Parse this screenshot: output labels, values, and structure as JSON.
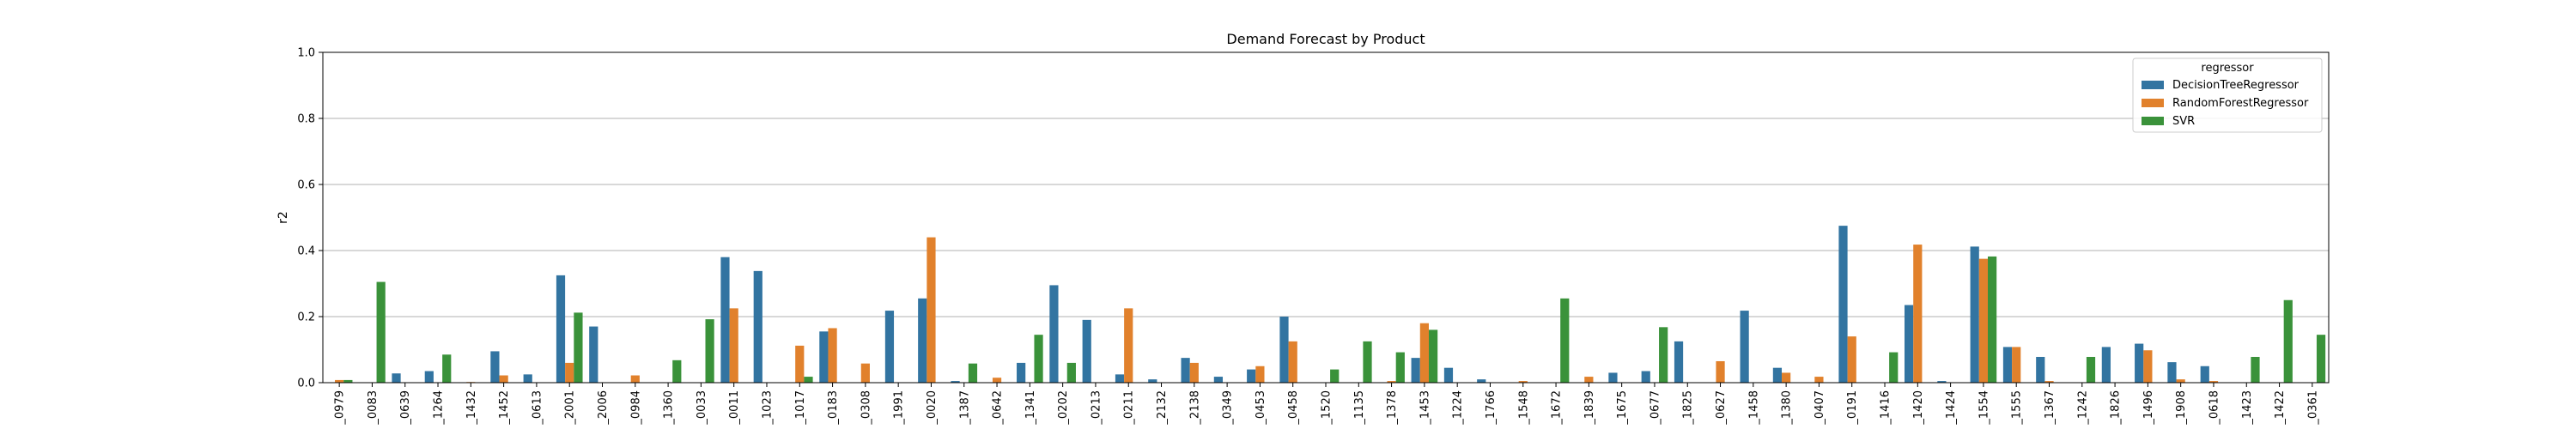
{
  "chart_data": {
    "type": "bar",
    "title": "Demand Forecast by Product",
    "xlabel": "",
    "ylabel": "r2",
    "ylim": [
      0,
      1.0
    ],
    "yticks": [
      "0.0",
      "0.2",
      "0.4",
      "0.6",
      "0.8",
      "1.0"
    ],
    "grid": "horizontal",
    "legend": {
      "title": "regressor",
      "placement": "top-right"
    },
    "categories": [
      "_0979",
      "_0083",
      "_0639",
      "_1264",
      "_1432",
      "_1452",
      "_0613",
      "_2001",
      "_2006",
      "_0984",
      "_1360",
      "_0033",
      "_0011",
      "_1023",
      "_1017",
      "_0183",
      "_0308",
      "_1991",
      "_0020",
      "_1387",
      "_0642",
      "_1341",
      "_0202",
      "_0213",
      "_0211",
      "_2132",
      "_2138",
      "_0349",
      "_0453",
      "_0458",
      "_1520",
      "_1135",
      "_1378",
      "_1453",
      "_1224",
      "_1766",
      "_1548",
      "_1672",
      "_1839",
      "_1675",
      "_0677",
      "_1825",
      "_0627",
      "_1458",
      "_1380",
      "_0407",
      "_0191",
      "_1416",
      "_1420",
      "_1424",
      "_1554",
      "_1555",
      "_1367",
      "_1242",
      "_1826",
      "_1496",
      "_1908",
      "_0618",
      "_1423",
      "_1422",
      "_0361"
    ],
    "series": [
      {
        "name": "DecisionTreeRegressor",
        "color": "#3274a1",
        "values": [
          0,
          0,
          0.028,
          0.035,
          0,
          0.095,
          0.025,
          0.325,
          0.17,
          0,
          0,
          0,
          0.38,
          0.338,
          0,
          0.155,
          0,
          0.218,
          0.255,
          0.005,
          0,
          0.06,
          0.295,
          0.19,
          0.025,
          0.01,
          0.075,
          0.018,
          0.04,
          0.2,
          0,
          0,
          0,
          0.075,
          0.045,
          0.01,
          0,
          0,
          0,
          0.03,
          0.035,
          0.125,
          0,
          0.218,
          0.045,
          0,
          0.475,
          0,
          0.235,
          0.005,
          0.412,
          0.108,
          0.078,
          0,
          0.108,
          0.118,
          0.062,
          0.05,
          0,
          0,
          0
        ]
      },
      {
        "name": "RandomForestRegressor",
        "color": "#e1812c",
        "values": [
          0.008,
          0,
          0,
          0,
          0.002,
          0.022,
          0,
          0.06,
          0,
          0.022,
          0,
          0,
          0.225,
          0,
          0.112,
          0.165,
          0.058,
          0,
          0.44,
          0,
          0.015,
          0,
          0,
          0,
          0.225,
          0,
          0.06,
          0,
          0.05,
          0.125,
          0,
          0,
          0.005,
          0.18,
          0,
          0,
          0.005,
          0,
          0.018,
          0,
          0,
          0,
          0.065,
          0,
          0.03,
          0.018,
          0.14,
          0,
          0.418,
          0,
          0.375,
          0.108,
          0.005,
          0,
          0,
          0.098,
          0.01,
          0.005,
          0,
          0,
          0
        ]
      },
      {
        "name": "SVR",
        "color": "#3a923a",
        "values": [
          0.008,
          0.305,
          0,
          0.085,
          0,
          0,
          0,
          0.212,
          0,
          0,
          0.068,
          0.192,
          0,
          0,
          0.018,
          0,
          0,
          0,
          0,
          0.058,
          0,
          0.145,
          0.06,
          0,
          0,
          0,
          0,
          0,
          0,
          0,
          0.04,
          0.125,
          0.092,
          0.16,
          0,
          0,
          0,
          0.255,
          0,
          0,
          0.168,
          0,
          0,
          0,
          0,
          0,
          0,
          0.092,
          0,
          0,
          0.382,
          0,
          0,
          0.078,
          0,
          0,
          0,
          0,
          0.078,
          0.25,
          0.145
        ]
      }
    ]
  }
}
